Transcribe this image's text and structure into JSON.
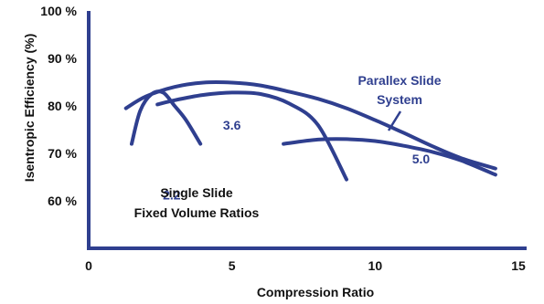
{
  "chart_data": {
    "type": "line",
    "title": "",
    "xlabel": "Compression Ratio",
    "ylabel": "Isentropic Efficiency (%)",
    "xlim": [
      0,
      15
    ],
    "ylim": [
      50,
      100
    ],
    "x_ticks": [
      "0",
      "5",
      "10",
      "15"
    ],
    "y_ticks": [
      "60 %",
      "70 %",
      "80 %",
      "90 %",
      "100 %"
    ],
    "grid": false,
    "series": [
      {
        "name": "2.2",
        "x": [
          1.5,
          1.8,
          2.2,
          2.6,
          3.0,
          3.4,
          3.9
        ],
        "y": [
          72,
          79,
          82.5,
          82.8,
          80,
          77,
          72
        ]
      },
      {
        "name": "3.6",
        "x": [
          2.4,
          3.0,
          4.0,
          5.0,
          6.0,
          7.0,
          8.0,
          9.0
        ],
        "y": [
          80.3,
          81.2,
          82.3,
          82.8,
          82.5,
          80.5,
          76,
          64.5
        ]
      },
      {
        "name": "5.0",
        "x": [
          6.8,
          8.0,
          9.0,
          10.0,
          11.0,
          12.0,
          13.0,
          14.2
        ],
        "y": [
          72,
          72.9,
          73,
          72.6,
          71.6,
          70.3,
          68.5,
          65.5
        ]
      },
      {
        "name": "Parallex Slide System",
        "x": [
          1.3,
          2.0,
          3.0,
          4.0,
          5.0,
          6.0,
          7.0,
          8.0,
          9.0,
          10.0,
          11.0,
          12.0,
          13.0,
          14.2
        ],
        "y": [
          79.5,
          82,
          84,
          84.9,
          84.9,
          84.3,
          83,
          81.5,
          79.5,
          77,
          74.3,
          71.5,
          69,
          66.8
        ]
      }
    ],
    "annotations": {
      "parallex_line1": "Parallex Slide",
      "parallex_line2": "System",
      "single_line1": "Single Slide",
      "single_line2": "Fixed Volume Ratios"
    },
    "colors": {
      "curve": "#2f3f8f",
      "axis": "#2f3f8f",
      "text": "#111111"
    }
  }
}
